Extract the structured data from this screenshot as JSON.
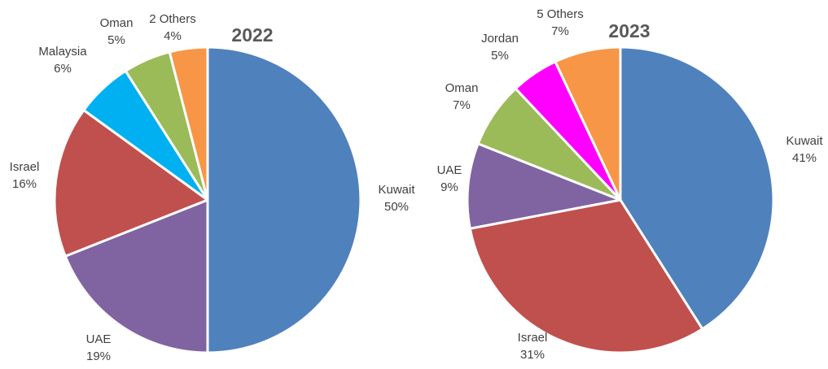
{
  "chart_data": [
    {
      "type": "pie",
      "title": "2022",
      "start_angle_deg": 0,
      "direction": "clockwise",
      "slices": [
        {
          "label": "Kuwait",
          "value": 50,
          "value_label": "50%",
          "color": "#4F81BD"
        },
        {
          "label": "UAE",
          "value": 19,
          "value_label": "19%",
          "color": "#8064A2"
        },
        {
          "label": "Israel",
          "value": 16,
          "value_label": "16%",
          "color": "#C0504D"
        },
        {
          "label": "Malaysia",
          "value": 6,
          "value_label": "6%",
          "color": "#00B0F0"
        },
        {
          "label": "Oman",
          "value": 5,
          "value_label": "5%",
          "color": "#9BBB59"
        },
        {
          "label": "2 Others",
          "value": 4,
          "value_label": "4%",
          "color": "#F79646"
        }
      ]
    },
    {
      "type": "pie",
      "title": "2023",
      "start_angle_deg": 0,
      "direction": "clockwise",
      "slices": [
        {
          "label": "Kuwait",
          "value": 41,
          "value_label": "41%",
          "color": "#4F81BD"
        },
        {
          "label": "Israel",
          "value": 31,
          "value_label": "31%",
          "color": "#C0504D"
        },
        {
          "label": "UAE",
          "value": 9,
          "value_label": "9%",
          "color": "#8064A2"
        },
        {
          "label": "Oman",
          "value": 7,
          "value_label": "7%",
          "color": "#9BBB59"
        },
        {
          "label": "Jordan",
          "value": 5,
          "value_label": "5%",
          "color": "#FF00FF"
        },
        {
          "label": "5 Others",
          "value": 7,
          "value_label": "7%",
          "color": "#F79646"
        }
      ]
    }
  ]
}
